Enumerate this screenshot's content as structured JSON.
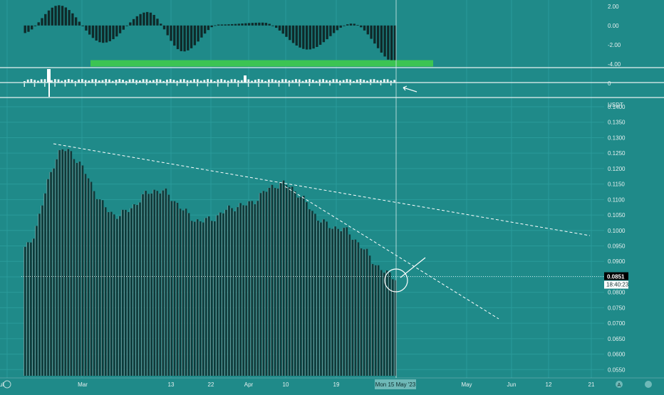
{
  "colors": {
    "background": "#1f8a89",
    "grid": "#2a9b9a",
    "bar_fill": "#0f3a3a",
    "bar_edge": "#ffffff",
    "histogram": "#0f2a2a",
    "signal_bar": "#3cc453",
    "panel_line": "#e8f2f2",
    "trend_line": "#ffffff",
    "label_text": "#e6f0f0",
    "price_tag_bg": "#000000",
    "timer_tag_bg": "#ffffff",
    "crosshair": "#d8ecec"
  },
  "oscillator": {
    "scale_labels": [
      "2.00",
      "0.00",
      "-2.00",
      "-4.00"
    ]
  },
  "volume_pane": {
    "scale_label": "0"
  },
  "price_axis": {
    "currency": "USDT",
    "tick_labels": [
      "0.1400",
      "0.1350",
      "0.1300",
      "0.1250",
      "0.1200",
      "0.1150",
      "0.1100",
      "0.1050",
      "0.1000",
      "0.0950",
      "0.0900",
      "0.0850",
      "0.0800",
      "0.0750",
      "0.0700",
      "0.0650",
      "0.0600",
      "0.0550"
    ],
    "current_price": "0.0851",
    "countdown": "18:40:23"
  },
  "time_axis": {
    "labels": [
      "Mar",
      "13",
      "22",
      "Apr",
      "10",
      "19",
      "May",
      "Jun",
      "12",
      "21",
      "Jul"
    ],
    "crosshair_label": "Mon 15 May '23"
  },
  "toolbar": {
    "left_icon": "zoom-icon",
    "auto_label": "A",
    "settings_icon": "gear-icon"
  },
  "chart_data": [
    {
      "type": "bar",
      "pane": "price",
      "x": [
        "2023-02-20",
        "2023-03-01",
        "2023-03-13",
        "2023-03-22",
        "2023-04-01",
        "2023-04-10",
        "2023-04-19",
        "2023-05-01",
        "2023-05-15"
      ],
      "y": [
        0.094,
        0.126,
        0.105,
        0.113,
        0.103,
        0.108,
        0.115,
        0.101,
        0.085
      ],
      "ylim": [
        0.053,
        0.14
      ]
    },
    {
      "type": "bar",
      "pane": "oscillator",
      "x": [
        "2023-02-20",
        "2023-02-28",
        "2023-03-10",
        "2023-03-20",
        "2023-03-28",
        "2023-04-05",
        "2023-04-15",
        "2023-04-25",
        "2023-05-05",
        "2023-05-15"
      ],
      "y": [
        -0.8,
        2.1,
        -1.8,
        1.4,
        -2.7,
        0.1,
        0.3,
        -2.5,
        0.2,
        -3.9
      ],
      "ylim": [
        -4.3,
        2.5
      ]
    }
  ]
}
